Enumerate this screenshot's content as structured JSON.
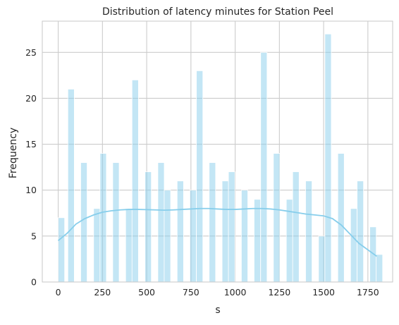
{
  "chart_data": {
    "type": "bar",
    "title": "Distribution of latency minutes for Station Peel",
    "xlabel": "s",
    "ylabel": "Frequency",
    "xlim": [
      -90,
      1890
    ],
    "ylim": [
      0,
      28.4
    ],
    "grid": true,
    "bin_width": 36.3,
    "xticks": [
      0,
      250,
      500,
      750,
      1000,
      1250,
      1500,
      1750
    ],
    "yticks": [
      0,
      5,
      10,
      15,
      20,
      25
    ],
    "colors": {
      "bar_fill": "#87CEEB",
      "bar_opacity": 0.5,
      "kde_line": "#87CEEB",
      "grid": "#cccccc",
      "spine": "#cccccc",
      "text": "#262626"
    },
    "series": [
      {
        "type": "histogram",
        "bins": [
          {
            "x": 0,
            "count": 7
          },
          {
            "x": 54.5,
            "count": 21
          },
          {
            "x": 127,
            "count": 13
          },
          {
            "x": 200,
            "count": 8
          },
          {
            "x": 236,
            "count": 14
          },
          {
            "x": 308,
            "count": 13
          },
          {
            "x": 381,
            "count": 8
          },
          {
            "x": 417,
            "count": 22
          },
          {
            "x": 490,
            "count": 12
          },
          {
            "x": 563,
            "count": 13
          },
          {
            "x": 599,
            "count": 10
          },
          {
            "x": 672,
            "count": 11
          },
          {
            "x": 744,
            "count": 10
          },
          {
            "x": 781,
            "count": 23
          },
          {
            "x": 853,
            "count": 13
          },
          {
            "x": 926,
            "count": 11
          },
          {
            "x": 962,
            "count": 12
          },
          {
            "x": 1035,
            "count": 10
          },
          {
            "x": 1107,
            "count": 9
          },
          {
            "x": 1144,
            "count": 25
          },
          {
            "x": 1216,
            "count": 14
          },
          {
            "x": 1289,
            "count": 9
          },
          {
            "x": 1325,
            "count": 12
          },
          {
            "x": 1398,
            "count": 11
          },
          {
            "x": 1471,
            "count": 5
          },
          {
            "x": 1507,
            "count": 27
          },
          {
            "x": 1580,
            "count": 14
          },
          {
            "x": 1652,
            "count": 8
          },
          {
            "x": 1689,
            "count": 11
          },
          {
            "x": 1761,
            "count": 6
          },
          {
            "x": 1797,
            "count": 3
          }
        ]
      },
      {
        "type": "kde",
        "points": [
          [
            0,
            4.5
          ],
          [
            50,
            5.3
          ],
          [
            100,
            6.3
          ],
          [
            150,
            6.9
          ],
          [
            200,
            7.3
          ],
          [
            250,
            7.6
          ],
          [
            300,
            7.75
          ],
          [
            350,
            7.85
          ],
          [
            400,
            7.9
          ],
          [
            450,
            7.9
          ],
          [
            500,
            7.88
          ],
          [
            550,
            7.85
          ],
          [
            600,
            7.82
          ],
          [
            650,
            7.85
          ],
          [
            700,
            7.9
          ],
          [
            750,
            7.95
          ],
          [
            800,
            8.0
          ],
          [
            850,
            8.0
          ],
          [
            900,
            7.95
          ],
          [
            950,
            7.9
          ],
          [
            1000,
            7.9
          ],
          [
            1050,
            7.95
          ],
          [
            1100,
            8.0
          ],
          [
            1150,
            8.0
          ],
          [
            1200,
            7.95
          ],
          [
            1250,
            7.85
          ],
          [
            1300,
            7.7
          ],
          [
            1350,
            7.55
          ],
          [
            1400,
            7.4
          ],
          [
            1450,
            7.3
          ],
          [
            1500,
            7.2
          ],
          [
            1550,
            6.9
          ],
          [
            1600,
            6.2
          ],
          [
            1650,
            5.2
          ],
          [
            1700,
            4.2
          ],
          [
            1750,
            3.5
          ],
          [
            1800,
            2.8
          ]
        ]
      }
    ]
  }
}
